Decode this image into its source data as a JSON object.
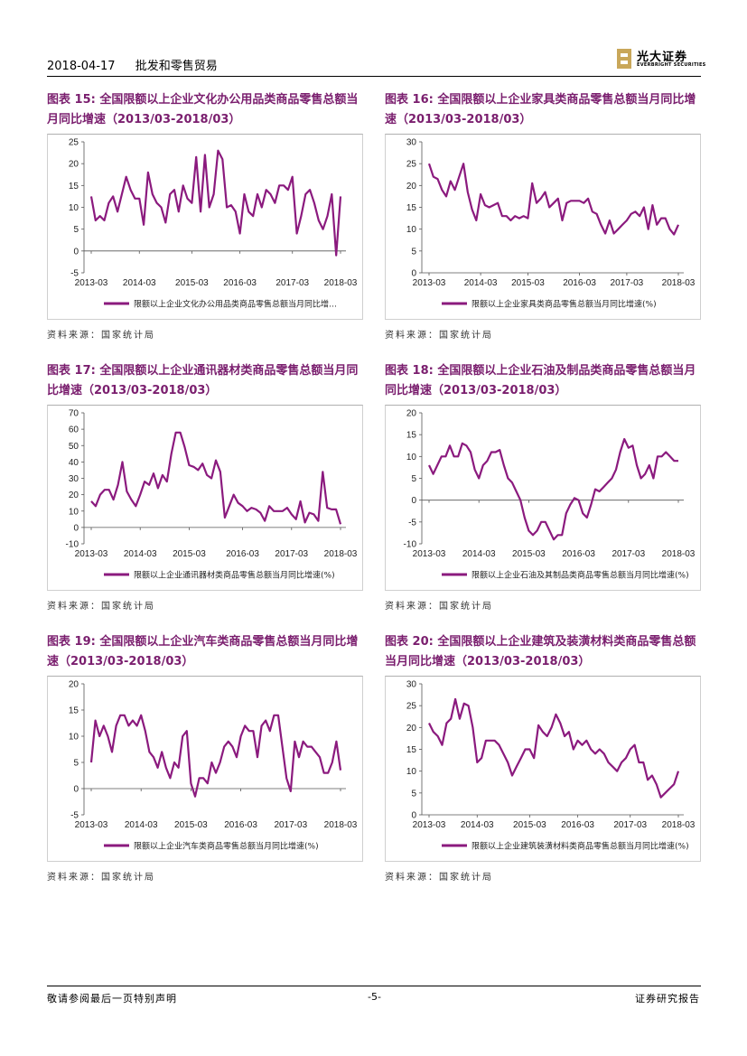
{
  "header": {
    "date": "2018-04-17",
    "section": "批发和零售贸易"
  },
  "logo": {
    "cn": "光大证券",
    "en": "EVERBRIGHT SECURITIES"
  },
  "footer": {
    "disclaimer": "敬请参阅最后一页特别声明",
    "page": "-5-",
    "report_type": "证券研究报告"
  },
  "source_label": "资料来源：国家统计局",
  "colors": {
    "series": "#8b1a7e",
    "title": "#7a1e6e"
  },
  "charts": [
    {
      "id": "fig15",
      "title": "图表 15: 全国限额以上企业文化办公用品类商品零售总额当月同比增速（2013/03-2018/03）",
      "legend": "限额以上企业文化办公用品类商品零售总额当月同比增…",
      "chart_data": {
        "type": "line",
        "ylim": [
          -5,
          25
        ],
        "yticks": [
          -5,
          0,
          5,
          10,
          15,
          20,
          25
        ],
        "xticks": [
          "2013-03",
          "2014-03",
          "2015-03",
          "2016-03",
          "2017-03",
          "2018-03"
        ],
        "series": [
          {
            "name": "限额以上企业文化办公用品类商品零售总额当月同比增…",
            "values": [
              12.5,
              7,
              8,
              7,
              11,
              12.5,
              9,
              13,
              17,
              14,
              12,
              12,
              6,
              18,
              13,
              11,
              10,
              6.5,
              13,
              14,
              9,
              15,
              12,
              11,
              21.5,
              9,
              22,
              10,
              13,
              23,
              21,
              10,
              10.5,
              9,
              4,
              13,
              9,
              8,
              13,
              10,
              14,
              13,
              11,
              15,
              15,
              14,
              17,
              4,
              8,
              13,
              14,
              11,
              7,
              5,
              8,
              13,
              -1,
              12.5
            ]
          }
        ]
      }
    },
    {
      "id": "fig16",
      "title": "图表 16: 全国限额以上企业家具类商品零售总额当月同比增速（2013/03-2018/03）",
      "legend": "限额以上企业家具类商品零售总额当月同比增速(%)",
      "chart_data": {
        "type": "line",
        "ylim": [
          0,
          30
        ],
        "yticks": [
          0,
          5,
          10,
          15,
          20,
          25,
          30
        ],
        "xticks": [
          "2013-03",
          "2014-03",
          "2015-03",
          "2016-03",
          "2017-03",
          "2018-03"
        ],
        "series": [
          {
            "name": "限额以上企业家具类商品零售总额当月同比增速(%)",
            "values": [
              25,
              22,
              21.5,
              19,
              17.5,
              21,
              19,
              22,
              25,
              18.5,
              14.5,
              12,
              18,
              15.5,
              15,
              15.5,
              16,
              13,
              13,
              12,
              13,
              12.5,
              13,
              12.5,
              20.5,
              16,
              17,
              18.5,
              15,
              16,
              17,
              12,
              16,
              16.5,
              16.5,
              16.5,
              16,
              17,
              14,
              13.5,
              11,
              9,
              12,
              9,
              10,
              11,
              12,
              13.5,
              14,
              13,
              15,
              10,
              15.5,
              11,
              12.5,
              12.5,
              10,
              8.8,
              11
            ]
          }
        ]
      }
    },
    {
      "id": "fig17",
      "title": "图表 17: 全国限额以上企业通讯器材类商品零售总额当月同比增速（2013/03-2018/03）",
      "legend": "限额以上企业通讯器材类商品零售总额当月同比增速(%)",
      "chart_data": {
        "type": "line",
        "ylim": [
          -10,
          70
        ],
        "yticks": [
          -10,
          0,
          10,
          20,
          30,
          40,
          50,
          60,
          70
        ],
        "xticks": [
          "2013-03",
          "2014-03",
          "2015-03",
          "2016-03",
          "2017-03",
          "2018-03"
        ],
        "series": [
          {
            "name": "限额以上企业通讯器材类商品零售总额当月同比增速(%)",
            "values": [
              16,
              13,
              20,
              23,
              23,
              17,
              26,
              40,
              22,
              17,
              13,
              20,
              28,
              26,
              33,
              24,
              32,
              28,
              45,
              58,
              58,
              49,
              38,
              37,
              35,
              39,
              32,
              30,
              41,
              34,
              6,
              13,
              20,
              15,
              13,
              10,
              12,
              11,
              9,
              4,
              13,
              10,
              10,
              10,
              12,
              8,
              5,
              16,
              3,
              9,
              8,
              4,
              34,
              12,
              11,
              11,
              2
            ]
          }
        ]
      }
    },
    {
      "id": "fig18",
      "title": "图表 18: 全国限额以上企业石油及制品类商品零售总额当月同比增速（2013/03-2018/03）",
      "legend": "限额以上企业石油及其制品类商品零售总额当月同比增速(%)",
      "chart_data": {
        "type": "line",
        "ylim": [
          -10,
          20
        ],
        "yticks": [
          -10,
          -5,
          0,
          5,
          10,
          15,
          20
        ],
        "xticks": [
          "2013-03",
          "2014-03",
          "2015-03",
          "2016-03",
          "2017-03",
          "2018-03"
        ],
        "series": [
          {
            "name": "限额以上企业石油及其制品类商品零售总额当月同比增速(%)",
            "values": [
              8,
              6,
              8,
              10,
              10,
              12.5,
              10,
              10,
              13,
              12.5,
              11,
              7,
              5,
              8,
              9,
              11,
              11,
              11.5,
              8,
              5,
              4,
              2,
              0,
              -4,
              -7,
              -8,
              -7,
              -5,
              -5,
              -7,
              -9,
              -8,
              -8,
              -3,
              -1,
              0.5,
              0,
              -3,
              -4,
              -1,
              2.5,
              2,
              3,
              4,
              5,
              7,
              11,
              14,
              12,
              12.5,
              8,
              5,
              6,
              8,
              5,
              10,
              10,
              11,
              10,
              9,
              9
            ]
          }
        ]
      }
    },
    {
      "id": "fig19",
      "title": "图表 19: 全国限额以上企业汽车类商品零售总额当月同比增速（2013/03-2018/03）",
      "legend": "限额以上企业汽车类商品零售总额当月同比增速(%)",
      "chart_data": {
        "type": "line",
        "ylim": [
          -5,
          20
        ],
        "yticks": [
          -5,
          0,
          5,
          10,
          15,
          20
        ],
        "xticks": [
          "2013-03",
          "2014-03",
          "2015-03",
          "2016-03",
          "2017-03",
          "2018-03"
        ],
        "series": [
          {
            "name": "限额以上企业汽车类商品零售总额当月同比增速(%)",
            "values": [
              5,
              13,
              10,
              12,
              10,
              7,
              12,
              14,
              14,
              12,
              13,
              12,
              14,
              11,
              7,
              6,
              4,
              7,
              4,
              2,
              5,
              4,
              10,
              11,
              1,
              -1.5,
              2,
              2,
              1,
              5,
              3,
              5,
              8,
              9,
              8,
              6,
              10,
              12,
              11,
              11,
              6,
              12,
              13,
              11,
              14,
              14,
              8,
              2,
              -0.5,
              9,
              6,
              9,
              8,
              8,
              7,
              6,
              3,
              3,
              5,
              9,
              3.5
            ]
          }
        ]
      }
    },
    {
      "id": "fig20",
      "title": "图表 20: 全国限额以上企业建筑及装潢材料类商品零售总额当月同比增速（2013/03-2018/03）",
      "legend": "限额以上企业建筑装潢材料类商品零售总额当月同比增速(%)",
      "chart_data": {
        "type": "line",
        "ylim": [
          0,
          30
        ],
        "yticks": [
          0,
          5,
          10,
          15,
          20,
          25,
          30
        ],
        "xticks": [
          "2013-03",
          "2014-03",
          "2015-03",
          "2016-03",
          "2017-03",
          "2018-03"
        ],
        "series": [
          {
            "name": "限额以上企业建筑装潢材料类商品零售总额当月同比增速(%)",
            "values": [
              21,
              19,
              18,
              16,
              21,
              22,
              26.5,
              22,
              25.5,
              25,
              20,
              12,
              13,
              17,
              17,
              17,
              16,
              14,
              12,
              9,
              11,
              13,
              15,
              15,
              13,
              20.5,
              19,
              18,
              20,
              23,
              21,
              18,
              19,
              15,
              17,
              16,
              17,
              15,
              14,
              15,
              14,
              12,
              11,
              10,
              12,
              13,
              15,
              16,
              12,
              12,
              8,
              9,
              7,
              4,
              5,
              6,
              7,
              10
            ]
          }
        ]
      }
    }
  ]
}
